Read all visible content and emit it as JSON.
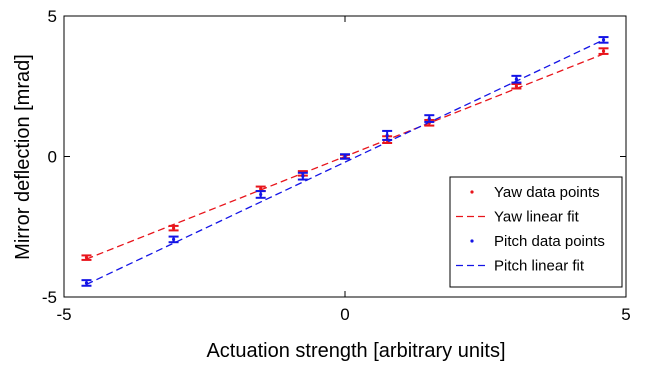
{
  "chart_data": {
    "type": "scatter",
    "title": "",
    "xlabel": "Actuation strength [arbitrary units]",
    "ylabel": "Mirror deflection [mrad]",
    "xlim": [
      -5,
      5
    ],
    "ylim": [
      -5,
      5
    ],
    "x_ticks": [
      "-5",
      "0",
      "5"
    ],
    "y_ticks": [
      "-5",
      "0",
      "5"
    ],
    "grid": false,
    "legend_position": "bottom-right",
    "colors": {
      "yaw": "#e8141b",
      "pitch": "#1414e6"
    },
    "series": [
      {
        "name": "Yaw data points",
        "kind": "points",
        "color": "#e8141b",
        "points": [
          {
            "x": -4.6,
            "y": -3.6,
            "err": 0.08
          },
          {
            "x": -3.05,
            "y": -2.55,
            "err": 0.08
          },
          {
            "x": -1.5,
            "y": -1.15,
            "err": 0.08
          },
          {
            "x": -0.75,
            "y": -0.6,
            "err": 0.08
          },
          {
            "x": 0.0,
            "y": 0.0,
            "err": 0.06
          },
          {
            "x": 0.75,
            "y": 0.6,
            "err": 0.12
          },
          {
            "x": 1.5,
            "y": 1.2,
            "err": 0.1
          },
          {
            "x": 3.05,
            "y": 2.5,
            "err": 0.08
          },
          {
            "x": 4.6,
            "y": 3.75,
            "err": 0.1
          }
        ]
      },
      {
        "name": "Yaw linear fit",
        "kind": "line",
        "color": "#e8141b",
        "x": [
          -4.6,
          4.6
        ],
        "y": [
          -3.65,
          3.65
        ]
      },
      {
        "name": "Pitch data points",
        "kind": "points",
        "color": "#1414e6",
        "points": [
          {
            "x": -4.6,
            "y": -4.5,
            "err": 0.1
          },
          {
            "x": -3.05,
            "y": -2.95,
            "err": 0.1
          },
          {
            "x": -1.5,
            "y": -1.35,
            "err": 0.12
          },
          {
            "x": -0.75,
            "y": -0.7,
            "err": 0.12
          },
          {
            "x": 0.0,
            "y": 0.0,
            "err": 0.08
          },
          {
            "x": 0.75,
            "y": 0.75,
            "err": 0.16
          },
          {
            "x": 1.5,
            "y": 1.35,
            "err": 0.12
          },
          {
            "x": 3.05,
            "y": 2.75,
            "err": 0.12
          },
          {
            "x": 4.6,
            "y": 4.15,
            "err": 0.1
          }
        ]
      },
      {
        "name": "Pitch linear fit",
        "kind": "line",
        "color": "#1414e6",
        "x": [
          -4.6,
          4.6
        ],
        "y": [
          -4.55,
          4.15
        ]
      }
    ]
  }
}
